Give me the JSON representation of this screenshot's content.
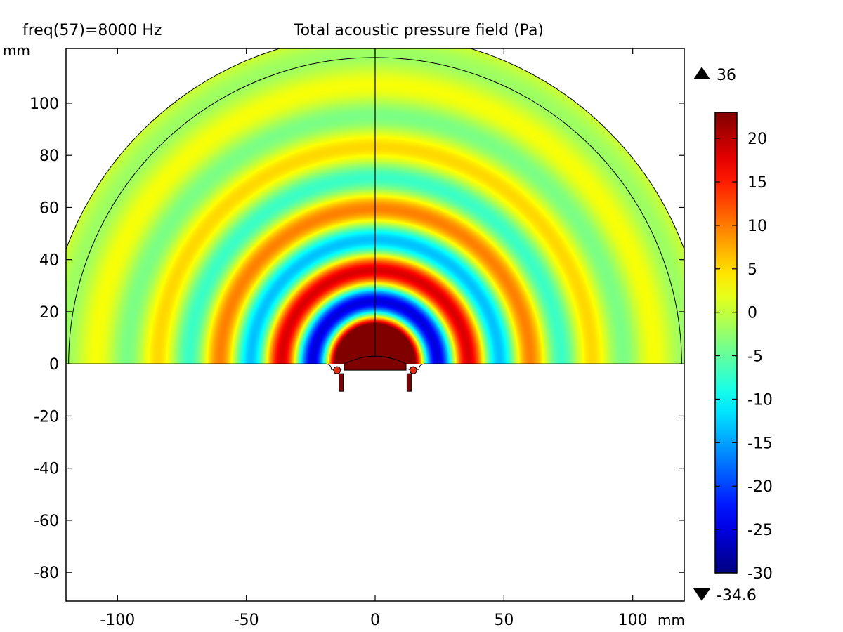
{
  "header": {
    "freq_label": "freq(57)=8000 Hz",
    "title": "Total acoustic pressure field (Pa)"
  },
  "chart_data": {
    "type": "heatmap",
    "title": "Total acoustic pressure field (Pa)",
    "subtitle": "freq(57)=8000 Hz",
    "x_unit": "mm",
    "y_unit": "mm",
    "xlim": [
      -120,
      120
    ],
    "ylim": [
      -91,
      121
    ],
    "x_ticks": [
      -100,
      -50,
      0,
      50,
      100
    ],
    "y_ticks": [
      100,
      80,
      60,
      40,
      20,
      0,
      -20,
      -40,
      -60,
      -80
    ],
    "x_tick_labels": [
      "-100",
      "-50",
      "0",
      "50",
      "100"
    ],
    "y_tick_labels": [
      "100",
      "80",
      "60",
      "40",
      "20",
      "0",
      "-20",
      "-40",
      "-60",
      "-80"
    ],
    "domain": {
      "outer_radius": 128,
      "inner_radius": 119,
      "source_radius": 12,
      "wavelength": 24,
      "field_decay_length": 38
    },
    "field_description": "Concentric pressure rings radiating from the speaker at origin",
    "max_value": "36",
    "min_value": "-34.6",
    "colorbar": {
      "range": [
        -30,
        23
      ],
      "ticks": [
        20,
        15,
        10,
        5,
        0,
        -5,
        -10,
        -15,
        -20,
        -25,
        -30
      ],
      "tick_labels": [
        "20",
        "15",
        "10",
        "5",
        "0",
        "-5",
        "-10",
        "-15",
        "-20",
        "-25",
        "-30"
      ],
      "colormap": "jet",
      "colors": [
        "#00007f",
        "#0000ff",
        "#00ffff",
        "#ffff00",
        "#ff0000",
        "#7f0000"
      ]
    },
    "grid": false
  }
}
